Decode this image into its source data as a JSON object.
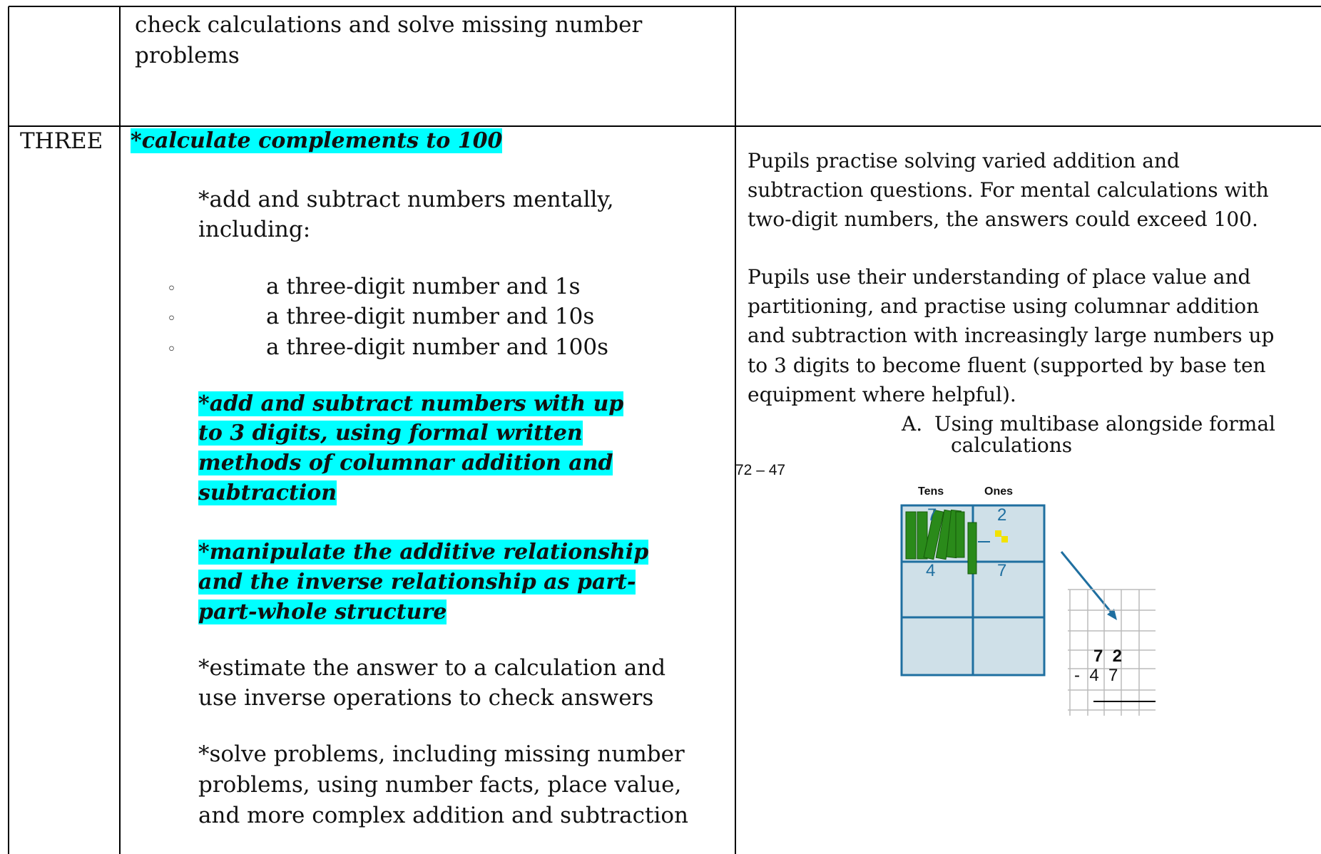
{
  "table": {
    "rows": [
      {
        "content": {
          "lines": [
            "check calculations and solve missing number",
            "problems"
          ]
        }
      },
      {
        "year": "THREE",
        "objectives": [
          {
            "lines": [
              "*calculate complements  to  100"
            ],
            "highlight": true
          },
          {
            "lines": [
              "*add and subtract numbers mentally,",
              "including:"
            ],
            "highlight": false,
            "sub_items": [
              {
                "marker": "◦",
                "text": "a three-digit number and 1s"
              },
              {
                "marker": "◦",
                "text": "a three-digit number and 10s"
              },
              {
                "marker": "◦",
                "text": "a three-digit number and 100s"
              }
            ]
          },
          {
            "lines": [
              "*add and subtract numbers with up",
              "to 3 digits, using formal written",
              "methods of columnar addition and",
              "subtraction"
            ],
            "highlight": true
          },
          {
            "lines": [
              "*manipulate the additive relationship",
              "and the inverse relationship as part-",
              "part-whole structure"
            ],
            "highlight": true
          },
          {
            "lines": [
              "*estimate the answer to a calculation and",
              "use inverse operations to check answers"
            ],
            "highlight": false
          },
          {
            "lines": [
              "*solve problems, including missing number",
              "problems, using number facts, place value,",
              "and more complex addition and subtraction"
            ],
            "highlight": false
          }
        ],
        "guidance": {
          "paragraphs": [
            [
              "Pupils practise solving varied addition and",
              "subtraction questions. For mental calculations with",
              "two-digit numbers, the answers could exceed 100."
            ],
            [
              "Pupils use their understanding of place value and",
              "partitioning, and practise using columnar addition",
              "and subtraction with increasingly large numbers up",
              "to 3 digits to become fluent (supported by base ten",
              "equipment where helpful)."
            ]
          ],
          "list_item": {
            "marker": "A.",
            "lines": [
              "Using  multibase alongside formal",
              "calculations"
            ]
          },
          "example": "72 – 47",
          "figure": {
            "labels": [
              "Tens",
              "Ones"
            ],
            "digits": [
              "7",
              "2",
              "4",
              "7"
            ],
            "column_sum": [
              "7  2",
              "-  4  7"
            ]
          }
        }
      }
    ]
  }
}
